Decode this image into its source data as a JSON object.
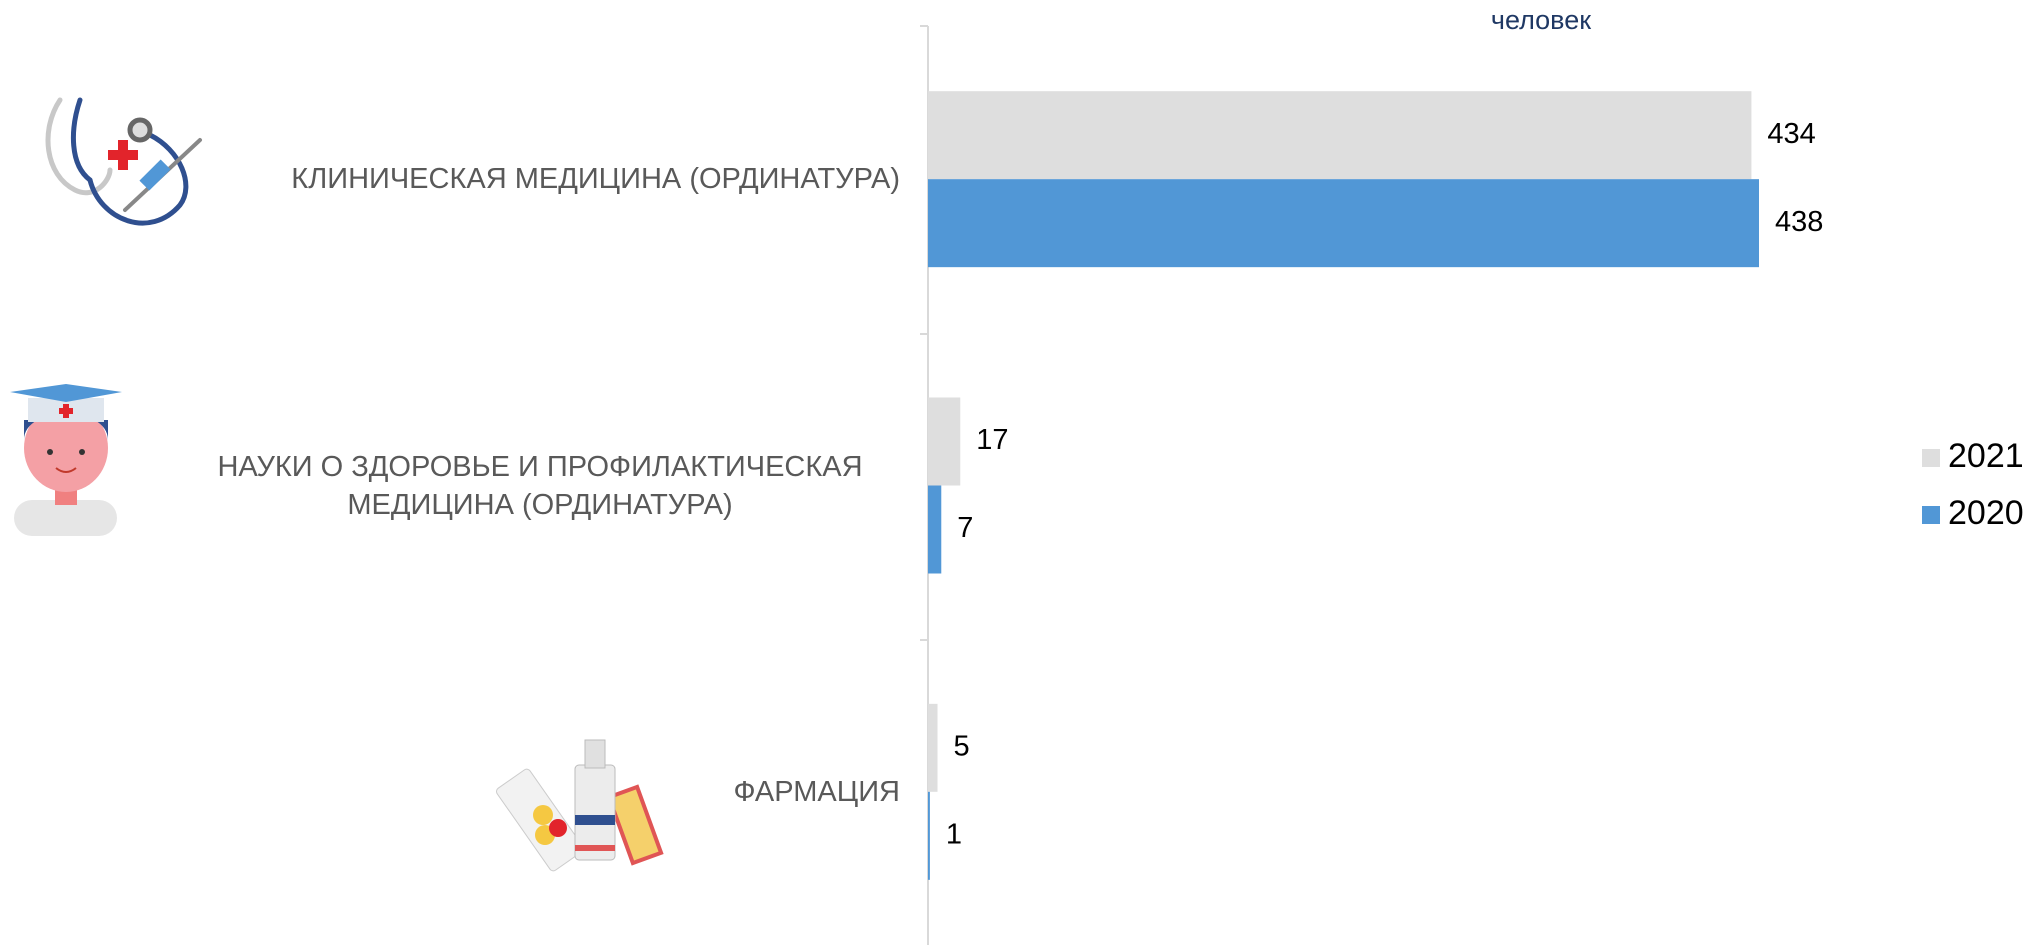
{
  "chart_data": {
    "type": "bar",
    "subtitle": "человек",
    "categories": [
      "КЛИНИЧЕСКАЯ МЕДИЦИНА (ОРДИНАТУРА)",
      "НАУКИ О ЗДОРОВЬЕ И ПРОФИЛАКТИЧЕСКАЯ МЕДИЦИНА (ОРДИНАТУРА)",
      "ФАРМАЦИЯ"
    ],
    "series": [
      {
        "name": "2021",
        "color": "#dedede",
        "values": [
          434,
          17,
          5
        ]
      },
      {
        "name": "2020",
        "color": "#5197d6",
        "values": [
          438,
          7,
          1
        ]
      }
    ]
  }
}
